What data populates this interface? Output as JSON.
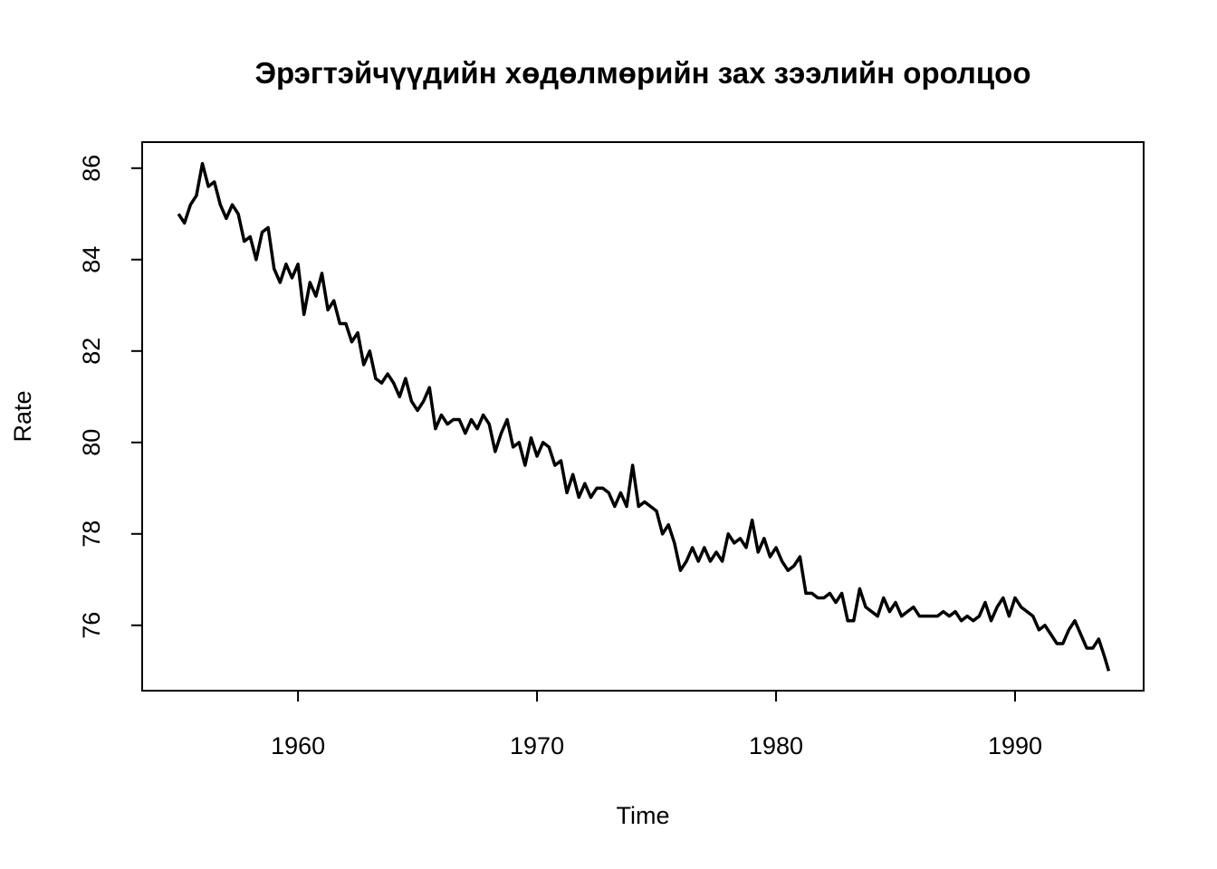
{
  "chart_data": {
    "type": "line",
    "title": "Эрэгтэйчүүдийн хөдөлмөрийн зах зээлийн оролцоо",
    "xlabel": "Time",
    "ylabel": "Rate",
    "color": "#000000",
    "xlim": [
      1953.48,
      1995.38
    ],
    "xticks": [
      1960,
      1970,
      1980,
      1990
    ],
    "ylim": [
      74.57,
      86.57
    ],
    "yticks": [
      76,
      78,
      80,
      82,
      84,
      86
    ],
    "x": [
      1955,
      1955.25,
      1955.5,
      1955.75,
      1956,
      1956.25,
      1956.5,
      1956.75,
      1957,
      1957.25,
      1957.5,
      1957.75,
      1958,
      1958.25,
      1958.5,
      1958.75,
      1959,
      1959.25,
      1959.5,
      1959.75,
      1960,
      1960.25,
      1960.5,
      1960.75,
      1961,
      1961.25,
      1961.5,
      1961.75,
      1962,
      1962.25,
      1962.5,
      1962.75,
      1963,
      1963.25,
      1963.5,
      1963.75,
      1964,
      1964.25,
      1964.5,
      1964.75,
      1965,
      1965.25,
      1965.5,
      1965.75,
      1966,
      1966.25,
      1966.5,
      1966.75,
      1967,
      1967.25,
      1967.5,
      1967.75,
      1968,
      1968.25,
      1968.5,
      1968.75,
      1969,
      1969.25,
      1969.5,
      1969.75,
      1970,
      1970.25,
      1970.5,
      1970.75,
      1971,
      1971.25,
      1971.5,
      1971.75,
      1972,
      1972.25,
      1972.5,
      1972.75,
      1973,
      1973.25,
      1973.5,
      1973.75,
      1974,
      1974.25,
      1974.5,
      1974.75,
      1975,
      1975.25,
      1975.5,
      1975.75,
      1976,
      1976.25,
      1976.5,
      1976.75,
      1977,
      1977.25,
      1977.5,
      1977.75,
      1978,
      1978.25,
      1978.5,
      1978.75,
      1979,
      1979.25,
      1979.5,
      1979.75,
      1980,
      1980.25,
      1980.5,
      1980.75,
      1981,
      1981.25,
      1981.5,
      1981.75,
      1982,
      1982.25,
      1982.5,
      1982.75,
      1983,
      1983.25,
      1983.5,
      1983.75,
      1984,
      1984.25,
      1984.5,
      1984.75,
      1985,
      1985.25,
      1985.5,
      1985.75,
      1986,
      1986.25,
      1986.5,
      1986.75,
      1987,
      1987.25,
      1987.5,
      1987.75,
      1988,
      1988.25,
      1988.5,
      1988.75,
      1989,
      1989.25,
      1989.5,
      1989.75,
      1990,
      1990.25,
      1990.5,
      1990.75,
      1991,
      1991.25,
      1991.5,
      1991.75,
      1992,
      1992.25,
      1992.5,
      1992.75,
      1993,
      1993.25,
      1993.5,
      1993.75,
      1993.92
    ],
    "values": [
      85.0,
      84.8,
      85.2,
      85.4,
      86.1,
      85.6,
      85.7,
      85.2,
      84.9,
      85.2,
      85.0,
      84.4,
      84.5,
      84.0,
      84.6,
      84.7,
      83.8,
      83.5,
      83.9,
      83.6,
      83.9,
      82.8,
      83.5,
      83.2,
      83.7,
      82.9,
      83.1,
      82.6,
      82.6,
      82.2,
      82.4,
      81.7,
      82.0,
      81.4,
      81.3,
      81.5,
      81.3,
      81.0,
      81.4,
      80.9,
      80.7,
      80.9,
      81.2,
      80.3,
      80.6,
      80.4,
      80.5,
      80.5,
      80.2,
      80.5,
      80.3,
      80.6,
      80.4,
      79.8,
      80.2,
      80.5,
      79.9,
      80.0,
      79.5,
      80.1,
      79.7,
      80.0,
      79.9,
      79.5,
      79.6,
      78.9,
      79.3,
      78.8,
      79.1,
      78.8,
      79.0,
      79.0,
      78.9,
      78.6,
      78.9,
      78.6,
      79.5,
      78.6,
      78.7,
      78.6,
      78.5,
      78.0,
      78.2,
      77.8,
      77.2,
      77.4,
      77.7,
      77.4,
      77.7,
      77.4,
      77.6,
      77.4,
      78.0,
      77.8,
      77.9,
      77.7,
      78.3,
      77.6,
      77.9,
      77.5,
      77.7,
      77.4,
      77.2,
      77.3,
      77.5,
      76.7,
      76.7,
      76.6,
      76.6,
      76.7,
      76.5,
      76.7,
      76.1,
      76.1,
      76.8,
      76.4,
      76.3,
      76.2,
      76.6,
      76.3,
      76.5,
      76.2,
      76.3,
      76.4,
      76.2,
      76.2,
      76.2,
      76.2,
      76.3,
      76.2,
      76.3,
      76.1,
      76.2,
      76.1,
      76.2,
      76.5,
      76.1,
      76.4,
      76.6,
      76.2,
      76.6,
      76.4,
      76.3,
      76.2,
      75.9,
      76.0,
      75.8,
      75.6,
      75.6,
      75.9,
      76.1,
      75.8,
      75.5,
      75.5,
      75.7,
      75.3,
      75.0
    ]
  }
}
